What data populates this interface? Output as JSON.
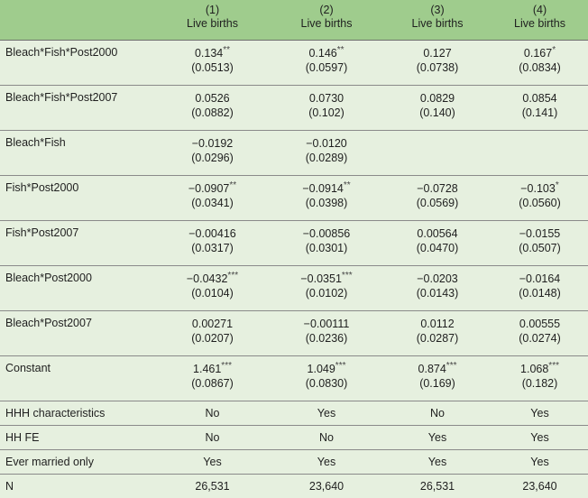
{
  "header": {
    "columns": [
      {
        "num": "(1)",
        "label": "Live births"
      },
      {
        "num": "(2)",
        "label": "Live births"
      },
      {
        "num": "(3)",
        "label": "Live births"
      },
      {
        "num": "(4)",
        "label": "Live births"
      }
    ]
  },
  "rows": [
    {
      "label": "Bleach*Fish*Post2000",
      "cells": [
        {
          "coef": "0.134",
          "stars": "**",
          "se": "(0.0513)"
        },
        {
          "coef": "0.146",
          "stars": "**",
          "se": "(0.0597)"
        },
        {
          "coef": "0.127",
          "stars": "",
          "se": "(0.0738)"
        },
        {
          "coef": "0.167",
          "stars": "*",
          "se": "(0.0834)"
        }
      ]
    },
    {
      "label": "Bleach*Fish*Post2007",
      "cells": [
        {
          "coef": "0.0526",
          "stars": "",
          "se": "(0.0882)"
        },
        {
          "coef": "0.0730",
          "stars": "",
          "se": "(0.102)"
        },
        {
          "coef": "0.0829",
          "stars": "",
          "se": "(0.140)"
        },
        {
          "coef": "0.0854",
          "stars": "",
          "se": "(0.141)"
        }
      ]
    },
    {
      "label": "Bleach*Fish",
      "cells": [
        {
          "coef": "−0.0192",
          "stars": "",
          "se": "(0.0296)"
        },
        {
          "coef": "−0.0120",
          "stars": "",
          "se": "(0.0289)"
        },
        {
          "coef": "",
          "stars": "",
          "se": ""
        },
        {
          "coef": "",
          "stars": "",
          "se": ""
        }
      ]
    },
    {
      "label": "Fish*Post2000",
      "cells": [
        {
          "coef": "−0.0907",
          "stars": "**",
          "se": "(0.0341)"
        },
        {
          "coef": "−0.0914",
          "stars": "**",
          "se": "(0.0398)"
        },
        {
          "coef": "−0.0728",
          "stars": "",
          "se": "(0.0569)"
        },
        {
          "coef": "−0.103",
          "stars": "*",
          "se": "(0.0560)"
        }
      ]
    },
    {
      "label": "Fish*Post2007",
      "cells": [
        {
          "coef": "−0.00416",
          "stars": "",
          "se": "(0.0317)"
        },
        {
          "coef": "−0.00856",
          "stars": "",
          "se": "(0.0301)"
        },
        {
          "coef": "0.00564",
          "stars": "",
          "se": "(0.0470)"
        },
        {
          "coef": "−0.0155",
          "stars": "",
          "se": "(0.0507)"
        }
      ]
    },
    {
      "label": "Bleach*Post2000",
      "cells": [
        {
          "coef": "−0.0432",
          "stars": "***",
          "se": "(0.0104)"
        },
        {
          "coef": "−0.0351",
          "stars": "***",
          "se": "(0.0102)"
        },
        {
          "coef": "−0.0203",
          "stars": "",
          "se": "(0.0143)"
        },
        {
          "coef": "−0.0164",
          "stars": "",
          "se": "(0.0148)"
        }
      ]
    },
    {
      "label": "Bleach*Post2007",
      "cells": [
        {
          "coef": "0.00271",
          "stars": "",
          "se": "(0.0207)"
        },
        {
          "coef": "−0.00111",
          "stars": "",
          "se": "(0.0236)"
        },
        {
          "coef": "0.0112",
          "stars": "",
          "se": "(0.0287)"
        },
        {
          "coef": "0.00555",
          "stars": "",
          "se": "(0.0274)"
        }
      ]
    },
    {
      "label": "Constant",
      "cells": [
        {
          "coef": "1.461",
          "stars": "***",
          "se": "(0.0867)"
        },
        {
          "coef": "1.049",
          "stars": "***",
          "se": "(0.0830)"
        },
        {
          "coef": "0.874",
          "stars": "***",
          "se": "(0.169)"
        },
        {
          "coef": "1.068",
          "stars": "***",
          "se": "(0.182)"
        }
      ]
    }
  ],
  "footer_rows": [
    {
      "label": "HHH characteristics",
      "values": [
        "No",
        "Yes",
        "No",
        "Yes"
      ]
    },
    {
      "label": "HH FE",
      "values": [
        "No",
        "No",
        "Yes",
        "Yes"
      ]
    },
    {
      "label": "Ever married only",
      "values": [
        "Yes",
        "Yes",
        "Yes",
        "Yes"
      ]
    },
    {
      "label": "N",
      "values": [
        "26,531",
        "23,640",
        "26,531",
        "23,640"
      ]
    }
  ]
}
